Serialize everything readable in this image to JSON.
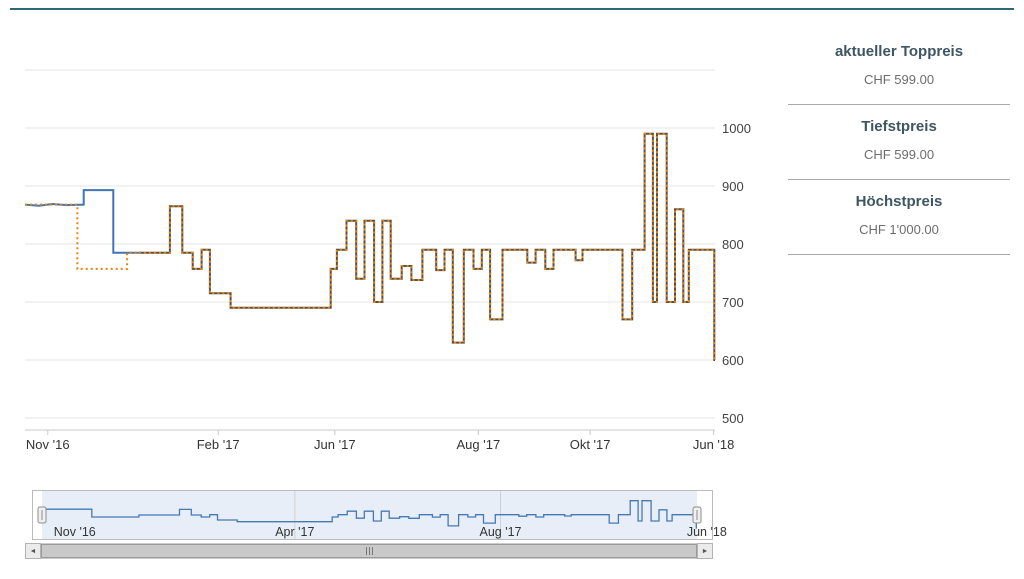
{
  "colors": {
    "top_border": "#2e6b70",
    "navigator_fill": "rgba(120,160,210,0.18)",
    "navigator_line": "#4579b4",
    "grid_line": "#e6e6e6",
    "axis_line": "#c9c9c9"
  },
  "stats": {
    "items": [
      {
        "label": "aktueller Toppreis",
        "value": "CHF 599.00"
      },
      {
        "label": "Tiefstpreis",
        "value": "CHF 599.00"
      },
      {
        "label": "Höchstpreis",
        "value": "CHF 1'000.00"
      }
    ]
  },
  "scrollbar": {
    "left_arrow": "◄",
    "right_arrow": "►"
  },
  "chart_data": {
    "type": "line",
    "step": true,
    "title": "",
    "xlabel": "",
    "ylabel": "",
    "ylim": [
      500,
      1100
    ],
    "yticks": [
      500,
      600,
      700,
      800,
      900,
      1000
    ],
    "grid": true,
    "legend": "none",
    "xticks": [
      {
        "label": "Nov '16",
        "f": 0.033
      },
      {
        "label": "Feb '17",
        "f": 0.28
      },
      {
        "label": "Jun '17",
        "f": 0.449
      },
      {
        "label": "Aug '17",
        "f": 0.657
      },
      {
        "label": "Okt '17",
        "f": 0.819
      },
      {
        "label": "Jun '18",
        "f": 0.998
      }
    ],
    "tail_points": [
      [
        0.165,
        785
      ],
      [
        0.21,
        785
      ],
      [
        0.21,
        865
      ],
      [
        0.228,
        865
      ],
      [
        0.228,
        785
      ],
      [
        0.243,
        785
      ],
      [
        0.243,
        757
      ],
      [
        0.256,
        757
      ],
      [
        0.256,
        790
      ],
      [
        0.268,
        790
      ],
      [
        0.268,
        715
      ],
      [
        0.298,
        715
      ],
      [
        0.298,
        690
      ],
      [
        0.443,
        690
      ],
      [
        0.443,
        757
      ],
      [
        0.452,
        757
      ],
      [
        0.452,
        790
      ],
      [
        0.466,
        790
      ],
      [
        0.466,
        840
      ],
      [
        0.48,
        840
      ],
      [
        0.48,
        740
      ],
      [
        0.492,
        740
      ],
      [
        0.492,
        840
      ],
      [
        0.506,
        840
      ],
      [
        0.506,
        700
      ],
      [
        0.518,
        700
      ],
      [
        0.518,
        840
      ],
      [
        0.53,
        840
      ],
      [
        0.53,
        740
      ],
      [
        0.546,
        740
      ],
      [
        0.546,
        762
      ],
      [
        0.56,
        762
      ],
      [
        0.56,
        738
      ],
      [
        0.576,
        738
      ],
      [
        0.576,
        790
      ],
      [
        0.596,
        790
      ],
      [
        0.596,
        755
      ],
      [
        0.608,
        755
      ],
      [
        0.608,
        790
      ],
      [
        0.62,
        790
      ],
      [
        0.62,
        630
      ],
      [
        0.636,
        630
      ],
      [
        0.636,
        790
      ],
      [
        0.65,
        790
      ],
      [
        0.65,
        757
      ],
      [
        0.662,
        757
      ],
      [
        0.662,
        790
      ],
      [
        0.674,
        790
      ],
      [
        0.674,
        670
      ],
      [
        0.692,
        670
      ],
      [
        0.692,
        790
      ],
      [
        0.728,
        790
      ],
      [
        0.728,
        768
      ],
      [
        0.74,
        768
      ],
      [
        0.74,
        790
      ],
      [
        0.754,
        790
      ],
      [
        0.754,
        757
      ],
      [
        0.766,
        757
      ],
      [
        0.766,
        790
      ],
      [
        0.798,
        790
      ],
      [
        0.798,
        772
      ],
      [
        0.808,
        772
      ],
      [
        0.808,
        790
      ],
      [
        0.866,
        790
      ],
      [
        0.866,
        670
      ],
      [
        0.88,
        670
      ],
      [
        0.88,
        790
      ],
      [
        0.898,
        790
      ],
      [
        0.898,
        990
      ],
      [
        0.91,
        990
      ],
      [
        0.91,
        700
      ],
      [
        0.916,
        700
      ],
      [
        0.916,
        990
      ],
      [
        0.93,
        990
      ],
      [
        0.93,
        700
      ],
      [
        0.942,
        700
      ],
      [
        0.942,
        860
      ],
      [
        0.954,
        860
      ],
      [
        0.954,
        700
      ],
      [
        0.962,
        700
      ],
      [
        0.962,
        790
      ],
      [
        0.999,
        790
      ],
      [
        0.999,
        600
      ],
      [
        1.0,
        600
      ]
    ],
    "segments": [
      {
        "name": "shop-price-start",
        "color": "#3f74b8",
        "dash": null,
        "width": 2,
        "points": [
          [
            0,
            868
          ],
          [
            0.02,
            866
          ],
          [
            0.04,
            869
          ],
          [
            0.06,
            867
          ],
          [
            0.085,
            868
          ],
          [
            0.085,
            893
          ],
          [
            0.128,
            893
          ],
          [
            0.128,
            785
          ],
          [
            0.165,
            785
          ]
        ]
      },
      {
        "name": "toppreis-start",
        "color": "#e8820c",
        "dash": "2,3",
        "width": 2,
        "points": [
          [
            0,
            868
          ],
          [
            0.076,
            868
          ],
          [
            0.076,
            757
          ],
          [
            0.148,
            757
          ],
          [
            0.148,
            785
          ],
          [
            0.165,
            785
          ]
        ]
      },
      {
        "name": "price-history-solid",
        "color": "#57504a",
        "dash": null,
        "width": 2,
        "points_ref": "tail_points"
      },
      {
        "name": "toppreis-dotted-overlay",
        "color": "#e8820c",
        "dash": "2,3",
        "width": 2,
        "points_ref": "tail_points"
      }
    ],
    "navigator": {
      "labels": [
        {
          "label": "Nov '16",
          "f": 0.05,
          "grid": false
        },
        {
          "label": "Apr '17",
          "f": 0.386,
          "grid": true
        },
        {
          "label": "Aug '17",
          "f": 0.7,
          "grid": true
        },
        {
          "label": "Jun '18",
          "f": 1.015,
          "grid": false
        }
      ]
    }
  }
}
